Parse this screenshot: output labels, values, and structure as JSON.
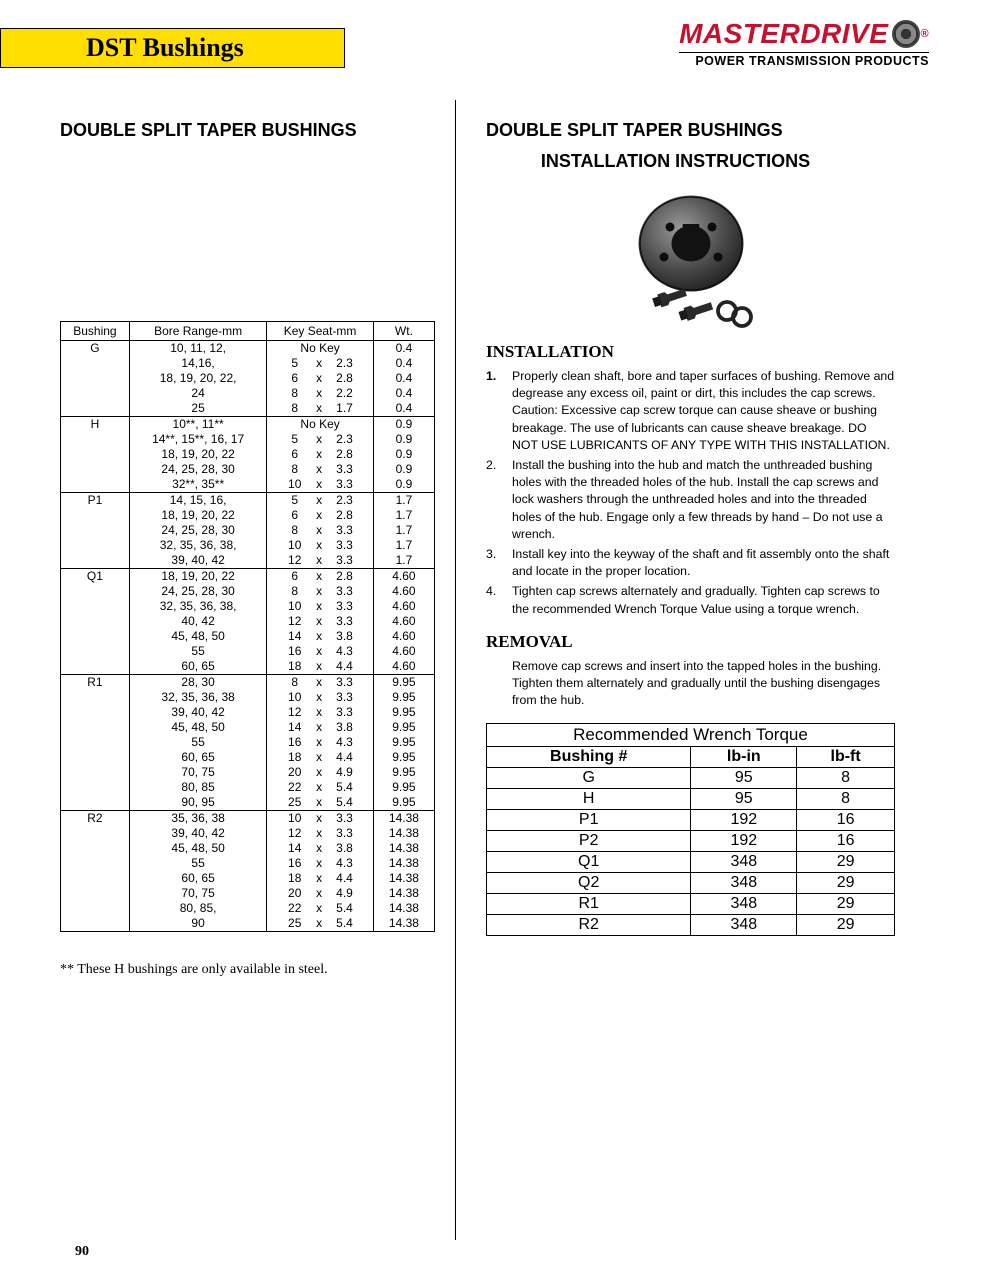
{
  "header": {
    "title": "DST Bushings"
  },
  "brand": {
    "main": "MASTERDRIVE",
    "sub": "POWER TRANSMISSION PRODUCTS"
  },
  "left": {
    "heading": "DOUBLE SPLIT TAPER BUSHINGS",
    "columns": [
      "Bushing",
      "Bore Range-mm",
      "Key Seat-mm",
      "Wt."
    ],
    "groups": [
      {
        "bushing": "G",
        "rows": [
          {
            "bore": "10, 11, 12,",
            "key": "No Key",
            "wt": "0.4"
          },
          {
            "bore": "14,16,",
            "key": [
              "5",
              "x",
              "2.3"
            ],
            "wt": "0.4"
          },
          {
            "bore": "18, 19, 20, 22,",
            "key": [
              "6",
              "x",
              "2.8"
            ],
            "wt": "0.4"
          },
          {
            "bore": "24",
            "key": [
              "8",
              "x",
              "2.2"
            ],
            "wt": "0.4"
          },
          {
            "bore": "25",
            "key": [
              "8",
              "x",
              "1.7"
            ],
            "wt": "0.4"
          }
        ]
      },
      {
        "bushing": "H",
        "rows": [
          {
            "bore": "10**, 11**",
            "key": "No Key",
            "wt": "0.9"
          },
          {
            "bore": "14**, 15**, 16, 17",
            "key": [
              "5",
              "x",
              "2.3"
            ],
            "wt": "0.9"
          },
          {
            "bore": "18, 19, 20, 22",
            "key": [
              "6",
              "x",
              "2.8"
            ],
            "wt": "0.9"
          },
          {
            "bore": "24, 25, 28, 30",
            "key": [
              "8",
              "x",
              "3.3"
            ],
            "wt": "0.9"
          },
          {
            "bore": "32**, 35**",
            "key": [
              "10",
              "x",
              "3.3"
            ],
            "wt": "0.9"
          }
        ]
      },
      {
        "bushing": "P1",
        "rows": [
          {
            "bore": "14, 15, 16,",
            "key": [
              "5",
              "x",
              "2.3"
            ],
            "wt": "1.7"
          },
          {
            "bore": "18, 19, 20, 22",
            "key": [
              "6",
              "x",
              "2.8"
            ],
            "wt": "1.7"
          },
          {
            "bore": "24, 25, 28, 30",
            "key": [
              "8",
              "x",
              "3.3"
            ],
            "wt": "1.7"
          },
          {
            "bore": "32, 35, 36, 38,",
            "key": [
              "10",
              "x",
              "3.3"
            ],
            "wt": "1.7"
          },
          {
            "bore": "39, 40, 42",
            "key": [
              "12",
              "x",
              "3.3"
            ],
            "wt": "1.7"
          }
        ]
      },
      {
        "bushing": "Q1",
        "rows": [
          {
            "bore": "18, 19, 20, 22",
            "key": [
              "6",
              "x",
              "2.8"
            ],
            "wt": "4.60"
          },
          {
            "bore": "24, 25, 28, 30",
            "key": [
              "8",
              "x",
              "3.3"
            ],
            "wt": "4.60"
          },
          {
            "bore": "32, 35, 36, 38,",
            "key": [
              "10",
              "x",
              "3.3"
            ],
            "wt": "4.60"
          },
          {
            "bore": "40, 42",
            "key": [
              "12",
              "x",
              "3.3"
            ],
            "wt": "4.60"
          },
          {
            "bore": "45, 48, 50",
            "key": [
              "14",
              "x",
              "3.8"
            ],
            "wt": "4.60"
          },
          {
            "bore": "55",
            "key": [
              "16",
              "x",
              "4.3"
            ],
            "wt": "4.60"
          },
          {
            "bore": "60, 65",
            "key": [
              "18",
              "x",
              "4.4"
            ],
            "wt": "4.60"
          }
        ]
      },
      {
        "bushing": "R1",
        "rows": [
          {
            "bore": "28, 30",
            "key": [
              "8",
              "x",
              "3.3"
            ],
            "wt": "9.95"
          },
          {
            "bore": "32, 35, 36, 38",
            "key": [
              "10",
              "x",
              "3.3"
            ],
            "wt": "9.95"
          },
          {
            "bore": "39, 40, 42",
            "key": [
              "12",
              "x",
              "3.3"
            ],
            "wt": "9.95"
          },
          {
            "bore": "45, 48, 50",
            "key": [
              "14",
              "x",
              "3.8"
            ],
            "wt": "9.95"
          },
          {
            "bore": "55",
            "key": [
              "16",
              "x",
              "4.3"
            ],
            "wt": "9.95"
          },
          {
            "bore": "60, 65",
            "key": [
              "18",
              "x",
              "4.4"
            ],
            "wt": "9.95"
          },
          {
            "bore": "70, 75",
            "key": [
              "20",
              "x",
              "4.9"
            ],
            "wt": "9.95"
          },
          {
            "bore": "80, 85",
            "key": [
              "22",
              "x",
              "5.4"
            ],
            "wt": "9.95"
          },
          {
            "bore": "90, 95",
            "key": [
              "25",
              "x",
              "5.4"
            ],
            "wt": "9.95"
          }
        ]
      },
      {
        "bushing": "R2",
        "rows": [
          {
            "bore": "35, 36, 38",
            "key": [
              "10",
              "x",
              "3.3"
            ],
            "wt": "14.38"
          },
          {
            "bore": "39, 40, 42",
            "key": [
              "12",
              "x",
              "3.3"
            ],
            "wt": "14.38"
          },
          {
            "bore": "45, 48, 50",
            "key": [
              "14",
              "x",
              "3.8"
            ],
            "wt": "14.38"
          },
          {
            "bore": "55",
            "key": [
              "16",
              "x",
              "4.3"
            ],
            "wt": "14.38"
          },
          {
            "bore": "60, 65",
            "key": [
              "18",
              "x",
              "4.4"
            ],
            "wt": "14.38"
          },
          {
            "bore": "70, 75",
            "key": [
              "20",
              "x",
              "4.9"
            ],
            "wt": "14.38"
          },
          {
            "bore": "80, 85,",
            "key": [
              "22",
              "x",
              "5.4"
            ],
            "wt": "14.38"
          },
          {
            "bore": "90",
            "key": [
              "25",
              "x",
              "5.4"
            ],
            "wt": "14.38"
          }
        ]
      }
    ],
    "footnote": "**  These H bushings are only available in steel."
  },
  "right": {
    "heading1": "DOUBLE SPLIT TAPER BUSHINGS",
    "heading2": "INSTALLATION INSTRUCTIONS",
    "install_title": "INSTALLATION",
    "install_items": [
      {
        "num": "1.",
        "text": "Properly clean shaft, bore and taper surfaces of bushing. Remove and degrease any excess oil, paint or dirt, this includes the cap screws.  Caution:  Excessive cap screw torque can cause sheave or bushing breakage.  The use of lubricants can cause sheave breakage.   DO NOT USE LUBRICANTS OF ANY TYPE WITH THIS INSTALLATION."
      },
      {
        "num": "2.",
        "text": "Install the bushing into the hub and match the unthreaded bushing holes with the threaded holes of the hub.  Install the cap screws and lock washers through the unthreaded holes and into the threaded holes of the hub.  Engage only a few threads by hand – Do not use a wrench."
      },
      {
        "num": "3.",
        "text": "Install key into the keyway of the shaft and fit assembly onto the shaft and locate in the proper location."
      },
      {
        "num": "4.",
        "text": "Tighten cap screws alternately and gradually.  Tighten cap screws to the recommended Wrench Torque Value using a torque wrench."
      }
    ],
    "removal_title": "REMOVAL",
    "removal_text": "Remove cap screws and insert into the tapped holes in the bushing. Tighten them alternately and gradually until the bushing disengages from the hub.",
    "torque": {
      "title": "Recommended Wrench Torque",
      "columns": [
        "Bushing #",
        "lb-in",
        "lb-ft"
      ],
      "rows": [
        [
          "G",
          "95",
          "8"
        ],
        [
          "H",
          "95",
          "8"
        ],
        [
          "P1",
          "192",
          "16"
        ],
        [
          "P2",
          "192",
          "16"
        ],
        [
          "Q1",
          "348",
          "29"
        ],
        [
          "Q2",
          "348",
          "29"
        ],
        [
          "R1",
          "348",
          "29"
        ],
        [
          "R2",
          "348",
          "29"
        ]
      ]
    }
  },
  "page_number": "90"
}
